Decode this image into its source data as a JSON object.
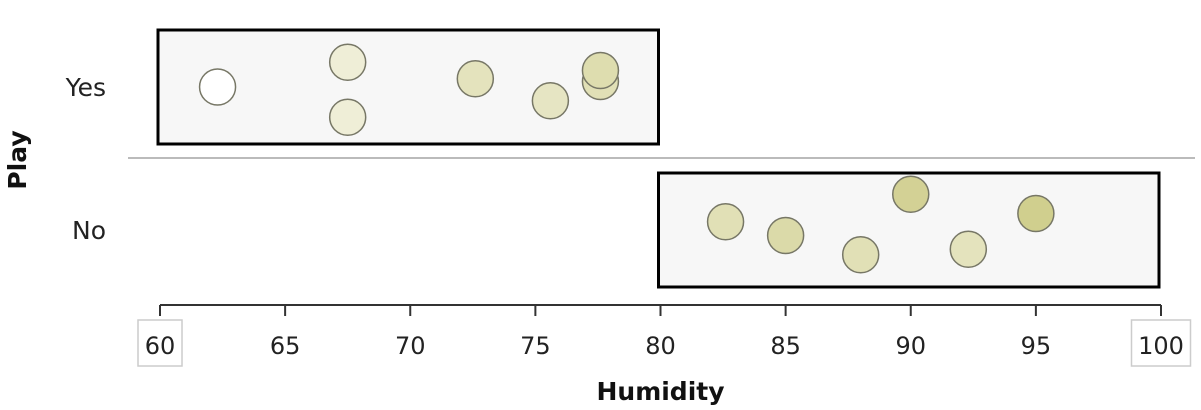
{
  "chart_data": {
    "type": "scatter",
    "xlabel": "Humidity",
    "ylabel": "Play",
    "xlim": [
      60,
      100
    ],
    "xticks": [
      "60",
      "65",
      "70",
      "75",
      "80",
      "85",
      "90",
      "95",
      "100"
    ],
    "highlighted_ticks": [
      "60",
      "100"
    ],
    "categories": [
      "Yes",
      "No"
    ],
    "ranges": [
      {
        "category": "Yes",
        "x_min": 60,
        "x_max": 80
      },
      {
        "category": "No",
        "x_min": 80,
        "x_max": 100
      }
    ],
    "points": [
      {
        "category": "Yes",
        "x": 62.3,
        "jitter": 0.0,
        "shade": 0.0
      },
      {
        "category": "Yes",
        "x": 67.5,
        "jitter": 0.45,
        "shade": 0.3
      },
      {
        "category": "Yes",
        "x": 67.5,
        "jitter": -0.55,
        "shade": 0.3
      },
      {
        "category": "Yes",
        "x": 72.6,
        "jitter": 0.15,
        "shade": 0.5
      },
      {
        "category": "Yes",
        "x": 75.6,
        "jitter": -0.25,
        "shade": 0.45
      },
      {
        "category": "Yes",
        "x": 77.6,
        "jitter": 0.1,
        "shade": 0.55
      },
      {
        "category": "Yes",
        "x": 77.6,
        "jitter": 0.3,
        "shade": 0.6
      },
      {
        "category": "No",
        "x": 82.6,
        "jitter": 0.15,
        "shade": 0.55
      },
      {
        "category": "No",
        "x": 85.0,
        "jitter": -0.1,
        "shade": 0.65
      },
      {
        "category": "No",
        "x": 88.0,
        "jitter": -0.45,
        "shade": 0.55
      },
      {
        "category": "No",
        "x": 90.0,
        "jitter": 0.65,
        "shade": 0.8
      },
      {
        "category": "No",
        "x": 92.3,
        "jitter": -0.35,
        "shade": 0.5
      },
      {
        "category": "No",
        "x": 95.0,
        "jitter": 0.3,
        "shade": 0.85
      }
    ],
    "colors": {
      "light": "#ffffff",
      "dark": "#c8c67a",
      "point_stroke": "#777766",
      "range_fill": "#f7f7f7",
      "range_stroke": "#000000",
      "divider": "#bbbbbb",
      "axis": "#333333"
    },
    "grid": false,
    "legend": "none"
  }
}
